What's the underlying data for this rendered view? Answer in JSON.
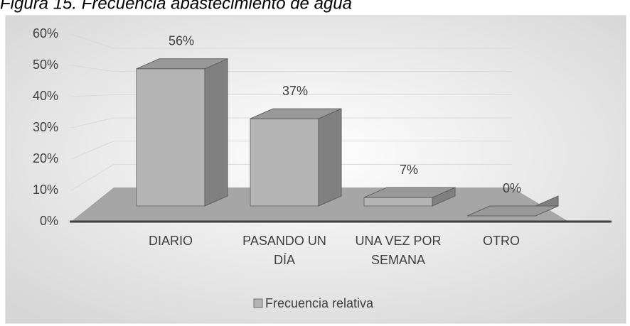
{
  "chart_data": {
    "type": "bar3d",
    "title": "Figura 15. Frecuencia abastecimiento de agua",
    "categories": [
      "DIARIO",
      "PASANDO UN DÍA",
      "UNA VEZ POR SEMANA",
      "OTRO"
    ],
    "series": [
      {
        "name": "Frecuencia relativa",
        "color": "#b4b4b4",
        "values": [
          56,
          37,
          7,
          0
        ],
        "value_labels": [
          "56%",
          "37%",
          "7%",
          "0%"
        ]
      }
    ],
    "ylim": [
      0,
      60
    ],
    "yticks": [
      {
        "value": 0,
        "label": "0%"
      },
      {
        "value": 10,
        "label": "10%"
      },
      {
        "value": 20,
        "label": "20%"
      },
      {
        "value": 30,
        "label": "30%"
      },
      {
        "value": 40,
        "label": "40%"
      },
      {
        "value": 50,
        "label": "50%"
      },
      {
        "value": 60,
        "label": "60%"
      }
    ],
    "grid": true,
    "legend": "bottom"
  }
}
